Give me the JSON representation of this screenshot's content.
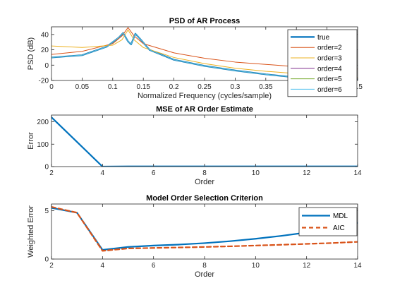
{
  "figure": {
    "background": "#ffffff",
    "colors": {
      "blue": "#0072BD",
      "orange": "#D95319",
      "yellow": "#EDB120",
      "purple": "#7E2F8E",
      "green": "#77AC30",
      "cyan": "#4DBEEE"
    }
  },
  "chart_data": [
    {
      "type": "line",
      "title": "PSD of AR Process",
      "xlabel": "Normalized Frequency (cycles/sample)",
      "ylabel": "PSD (dB)",
      "xlim": [
        0,
        0.5
      ],
      "ylim": [
        -20,
        50
      ],
      "xticks": [
        0,
        0.05,
        0.1,
        0.15,
        0.2,
        0.25,
        0.3,
        0.35,
        0.4,
        0.45,
        0.5
      ],
      "xtick_labels": [
        "0",
        "0.05",
        "0.1",
        "0.15",
        "0.2",
        "0.25",
        "0.3",
        "0.35",
        "0.4",
        "0.45",
        "0.5"
      ],
      "yticks": [
        -20,
        0,
        20,
        40
      ],
      "ytick_labels": [
        "-20",
        "0",
        "20",
        "40"
      ],
      "grid": false,
      "legend_position": "right",
      "series": [
        {
          "name": "true",
          "color": "#0072BD",
          "width": 2.2,
          "x": [
            0,
            0.05,
            0.09,
            0.11,
            0.117,
            0.125,
            0.13,
            0.137,
            0.145,
            0.16,
            0.2,
            0.25,
            0.3,
            0.35,
            0.4,
            0.45,
            0.5
          ],
          "y": [
            10,
            13,
            24,
            36,
            42,
            31,
            27,
            41,
            34,
            20,
            7,
            -1,
            -7,
            -12,
            -16,
            -18,
            -19
          ]
        },
        {
          "name": "order=2",
          "color": "#D95319",
          "width": 1,
          "x": [
            0,
            0.05,
            0.1,
            0.115,
            0.125,
            0.135,
            0.15,
            0.2,
            0.25,
            0.3,
            0.35,
            0.4,
            0.45,
            0.5
          ],
          "y": [
            14,
            18,
            28,
            38,
            49,
            38,
            28,
            16,
            9,
            4,
            1,
            -2,
            -4,
            -5
          ]
        },
        {
          "name": "order=3",
          "color": "#EDB120",
          "width": 1,
          "x": [
            0,
            0.05,
            0.1,
            0.115,
            0.125,
            0.135,
            0.15,
            0.2,
            0.25,
            0.3,
            0.35,
            0.4,
            0.45,
            0.5
          ],
          "y": [
            25,
            23,
            26,
            33,
            46,
            33,
            23,
            10,
            2,
            -4,
            -8,
            -11,
            -14,
            -16
          ]
        },
        {
          "name": "order=4",
          "color": "#7E2F8E",
          "width": 1,
          "x": [
            0,
            0.05,
            0.09,
            0.11,
            0.117,
            0.125,
            0.13,
            0.137,
            0.145,
            0.16,
            0.2,
            0.25,
            0.3,
            0.35,
            0.4,
            0.45,
            0.5
          ],
          "y": [
            10,
            13,
            24,
            36,
            42,
            31,
            27,
            41,
            34,
            20,
            7,
            -1,
            -7,
            -12,
            -16,
            -18,
            -19
          ]
        },
        {
          "name": "order=5",
          "color": "#77AC30",
          "width": 1,
          "x": [
            0,
            0.05,
            0.09,
            0.11,
            0.117,
            0.125,
            0.13,
            0.137,
            0.145,
            0.16,
            0.2,
            0.25,
            0.3,
            0.35,
            0.4,
            0.45,
            0.5
          ],
          "y": [
            10,
            13,
            24,
            36,
            42,
            31,
            27,
            41,
            34,
            20,
            7,
            -1,
            -7,
            -12,
            -16,
            -18,
            -19
          ]
        },
        {
          "name": "order=6",
          "color": "#4DBEEE",
          "width": 1,
          "x": [
            0,
            0.05,
            0.09,
            0.11,
            0.117,
            0.125,
            0.13,
            0.137,
            0.145,
            0.16,
            0.2,
            0.25,
            0.3,
            0.35,
            0.4,
            0.45,
            0.5
          ],
          "y": [
            10,
            13,
            24,
            36,
            42,
            31,
            27,
            41,
            34,
            20,
            7,
            -1,
            -7,
            -12,
            -16,
            -18,
            -19
          ]
        }
      ]
    },
    {
      "type": "line",
      "title": "MSE of AR Order Estimate",
      "xlabel": "Order",
      "ylabel": "Error",
      "xlim": [
        2,
        14
      ],
      "ylim": [
        0,
        230
      ],
      "xticks": [
        2,
        4,
        6,
        8,
        10,
        12,
        14
      ],
      "xtick_labels": [
        "2",
        "4",
        "6",
        "8",
        "10",
        "12",
        "14"
      ],
      "yticks": [
        0,
        100,
        200
      ],
      "ytick_labels": [
        "0",
        "100",
        "200"
      ],
      "grid": false,
      "series": [
        {
          "color": "#0072BD",
          "width": 2.2,
          "x": [
            2,
            3,
            4,
            5,
            6,
            7,
            8,
            9,
            10,
            11,
            12,
            13,
            14
          ],
          "y": [
            220,
            110,
            0,
            1,
            1,
            1,
            1,
            1,
            1,
            1,
            1,
            1,
            1
          ]
        }
      ]
    },
    {
      "type": "line",
      "title": "Model Order Selection Criterion",
      "xlabel": "Order",
      "ylabel": "Weighted Error",
      "xlim": [
        2,
        14
      ],
      "ylim": [
        0,
        5.7
      ],
      "xticks": [
        2,
        4,
        6,
        8,
        10,
        12,
        14
      ],
      "xtick_labels": [
        "2",
        "4",
        "6",
        "8",
        "10",
        "12",
        "14"
      ],
      "yticks": [
        0,
        5
      ],
      "ytick_labels": [
        "0",
        "5"
      ],
      "grid": false,
      "legend_position": "top-right",
      "series": [
        {
          "name": "MDL",
          "color": "#0072BD",
          "width": 2.2,
          "dash": "",
          "x": [
            2,
            3,
            4,
            5,
            6,
            7,
            8,
            9,
            10,
            11,
            12,
            13,
            14
          ],
          "y": [
            5.3,
            4.8,
            0.95,
            1.25,
            1.4,
            1.5,
            1.65,
            1.85,
            2.1,
            2.4,
            2.75,
            3.15,
            3.75
          ]
        },
        {
          "name": "AIC",
          "color": "#D95319",
          "width": 2.2,
          "dash": "6,4",
          "x": [
            2,
            3,
            4,
            5,
            6,
            7,
            8,
            9,
            10,
            11,
            12,
            13,
            14
          ],
          "y": [
            5.4,
            4.8,
            0.85,
            1.1,
            1.15,
            1.2,
            1.25,
            1.32,
            1.4,
            1.48,
            1.57,
            1.66,
            1.78
          ]
        }
      ]
    }
  ]
}
